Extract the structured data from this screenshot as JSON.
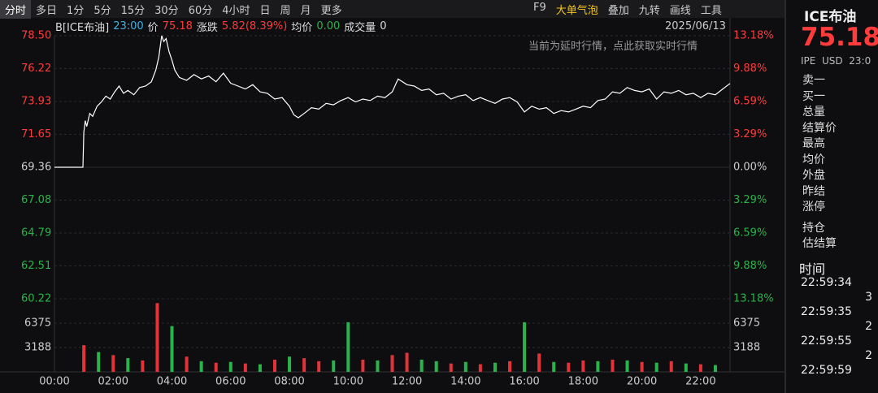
{
  "toolbar": {
    "periods": [
      "分时",
      "多日",
      "1分",
      "5分",
      "15分",
      "30分",
      "60分",
      "4小时",
      "日",
      "周",
      "月",
      "更多"
    ],
    "tools": [
      "F9",
      "大单气泡",
      "叠加",
      "九转",
      "画线",
      "工具"
    ]
  },
  "info_bar": {
    "symbol": "B[ICE布油]",
    "time": "23:00",
    "price_label": "价",
    "price": "75.18",
    "change_label": "涨跌",
    "change": "5.82(8.39%)",
    "avg_label": "均价",
    "avg": "0.00",
    "volume_label": "成交量",
    "volume": "0",
    "date": "2025/06/13",
    "notice": "当前为延时行情，点此获取实时行情"
  },
  "side_panel": {
    "title": "ICE布油",
    "price": "75.18",
    "subtitle": "IPE  USD  23:0",
    "fields": [
      "卖一",
      "买一",
      "总量",
      "结算价",
      "最高",
      "均价",
      "外盘",
      "昨结",
      "涨停",
      "持仓",
      "估结算"
    ],
    "time_header": "时间",
    "trades": [
      {
        "time": "22:59:34",
        "count": "3"
      },
      {
        "time": "22:59:35",
        "count": "2"
      },
      {
        "time": "22:59:55",
        "count": "2"
      },
      {
        "time": "22:59:59",
        "count": ""
      }
    ]
  },
  "chart_data": [
    {
      "type": "line",
      "xlim": [
        0,
        23
      ],
      "ylim": [
        60.22,
        78.5
      ],
      "yticks": [
        {
          "value": 78.5,
          "label": "78.50"
        },
        76.22,
        73.93,
        71.65,
        69.36,
        67.08,
        64.79,
        62.51,
        60.22
      ],
      "y2lim": [
        -13.18,
        13.18
      ],
      "y2ticks": [
        {
          "value": 13.18,
          "label": "13.18%"
        },
        {
          "value": 9.88,
          "label": "9.88%"
        },
        {
          "value": 6.59,
          "label": "6.59%"
        },
        {
          "value": 3.29,
          "label": "3.29%"
        },
        {
          "value": 0,
          "label": "0.00%"
        },
        {
          "value": -3.29,
          "label": "3.29%"
        },
        {
          "value": -6.59,
          "label": "6.59%"
        },
        {
          "value": -9.88,
          "label": "9.88%"
        },
        {
          "value": -13.18,
          "label": "13.18%"
        }
      ],
      "grid": true,
      "x": [
        0,
        0.97,
        1.0,
        1.05,
        1.1,
        1.2,
        1.3,
        1.45,
        1.6,
        1.75,
        1.9,
        2.05,
        2.2,
        2.35,
        2.5,
        2.7,
        2.9,
        3.1,
        3.3,
        3.45,
        3.55,
        3.65,
        3.72,
        3.8,
        3.9,
        4.0,
        4.1,
        4.25,
        4.5,
        4.75,
        5.0,
        5.25,
        5.5,
        5.75,
        6.0,
        6.25,
        6.5,
        6.75,
        7.0,
        7.25,
        7.5,
        7.75,
        8.0,
        8.15,
        8.3,
        8.5,
        8.75,
        9.0,
        9.25,
        9.5,
        9.75,
        10.0,
        10.25,
        10.5,
        10.75,
        11.0,
        11.25,
        11.5,
        11.7,
        12.0,
        12.25,
        12.5,
        12.75,
        13.0,
        13.25,
        13.5,
        13.75,
        14.0,
        14.25,
        14.5,
        14.75,
        15.0,
        15.25,
        15.5,
        15.75,
        16.0,
        16.25,
        16.5,
        16.75,
        17.0,
        17.25,
        17.5,
        17.75,
        18.0,
        18.25,
        18.5,
        18.75,
        19.0,
        19.25,
        19.5,
        19.75,
        20.0,
        20.25,
        20.5,
        20.75,
        21.0,
        21.25,
        21.5,
        21.75,
        22.0,
        22.25,
        22.5,
        22.75,
        23.0
      ],
      "series": [
        {
          "color": "#ffffff",
          "values": [
            69.36,
            69.36,
            71.8,
            72.6,
            72.2,
            73.1,
            72.9,
            73.6,
            73.9,
            74.3,
            74.1,
            74.6,
            75.0,
            74.5,
            74.7,
            74.4,
            74.9,
            75.0,
            75.3,
            76.1,
            77.0,
            78.5,
            78.1,
            78.3,
            77.4,
            76.8,
            76.1,
            75.6,
            75.4,
            75.8,
            75.5,
            75.7,
            75.3,
            75.9,
            75.2,
            75.0,
            74.8,
            75.1,
            74.6,
            74.5,
            74.1,
            74.2,
            73.6,
            73.0,
            72.8,
            73.1,
            73.5,
            73.4,
            73.8,
            73.7,
            74.0,
            74.2,
            73.9,
            74.1,
            74.0,
            74.3,
            74.2,
            74.6,
            75.5,
            75.1,
            75.0,
            74.7,
            74.8,
            74.4,
            74.5,
            74.1,
            74.3,
            74.4,
            74.0,
            74.2,
            74.0,
            73.8,
            74.1,
            74.2,
            73.9,
            73.2,
            73.6,
            73.4,
            73.5,
            73.1,
            73.3,
            73.2,
            73.4,
            73.6,
            73.5,
            74.0,
            74.1,
            74.6,
            74.5,
            74.9,
            74.7,
            74.6,
            74.8,
            74.1,
            74.6,
            74.5,
            74.7,
            74.4,
            74.5,
            74.2,
            74.5,
            74.4,
            74.8,
            75.18
          ]
        }
      ]
    },
    {
      "type": "bar",
      "xlim": [
        0,
        23
      ],
      "ylim": [
        0,
        9563
      ],
      "yticks": [
        3188,
        6375
      ],
      "xticks": [
        {
          "value": 0,
          "label": "00:00"
        },
        {
          "value": 2,
          "label": "02:00"
        },
        {
          "value": 4,
          "label": "04:00"
        },
        {
          "value": 6,
          "label": "06:00"
        },
        {
          "value": 8,
          "label": "08:00"
        },
        {
          "value": 10,
          "label": "10:00"
        },
        {
          "value": 12,
          "label": "12:00"
        },
        {
          "value": 14,
          "label": "14:00"
        },
        {
          "value": 16,
          "label": "16:00"
        },
        {
          "value": 18,
          "label": "18:00"
        },
        {
          "value": 20,
          "label": "20:00"
        },
        {
          "value": 22,
          "label": "22:00"
        }
      ],
      "x": [
        1,
        1.5,
        2,
        2.5,
        3,
        3.5,
        4,
        4.5,
        5,
        5.5,
        6,
        6.5,
        7,
        7.5,
        8,
        8.5,
        9,
        9.5,
        10,
        10.5,
        11,
        11.5,
        12,
        12.5,
        13,
        13.5,
        14,
        14.5,
        15,
        15.5,
        16,
        16.5,
        17,
        17.5,
        18,
        18.5,
        19,
        19.5,
        20,
        20.5,
        21,
        21.5,
        22,
        22.5
      ],
      "values": [
        3500,
        2600,
        2200,
        1800,
        1500,
        9000,
        6000,
        2000,
        1400,
        1200,
        1300,
        1100,
        1000,
        1600,
        2000,
        1800,
        1400,
        1500,
        6500,
        1600,
        1500,
        2200,
        2500,
        1600,
        1400,
        1100,
        1300,
        1000,
        1200,
        1400,
        6500,
        2400,
        1300,
        1200,
        1500,
        1400,
        1600,
        1500,
        1300,
        1200,
        1400,
        1100,
        1000,
        900
      ],
      "colors": [
        "#e0333a",
        "#2ab34a",
        "#e0333a",
        "#2ab34a",
        "#e0333a",
        "#e0333a",
        "#2ab34a",
        "#e0333a",
        "#2ab34a",
        "#e0333a",
        "#2ab34a",
        "#e0333a",
        "#2ab34a",
        "#e0333a",
        "#2ab34a",
        "#e0333a",
        "#e0333a",
        "#2ab34a",
        "#2ab34a",
        "#e0333a",
        "#2ab34a",
        "#e0333a",
        "#e0333a",
        "#2ab34a",
        "#2ab34a",
        "#e0333a",
        "#2ab34a",
        "#e0333a",
        "#2ab34a",
        "#e0333a",
        "#2ab34a",
        "#e0333a",
        "#2ab34a",
        "#e0333a",
        "#e0333a",
        "#2ab34a",
        "#e0333a",
        "#2ab34a",
        "#e0333a",
        "#2ab34a",
        "#e0333a",
        "#2ab34a",
        "#e0333a",
        "#2ab34a"
      ]
    }
  ]
}
